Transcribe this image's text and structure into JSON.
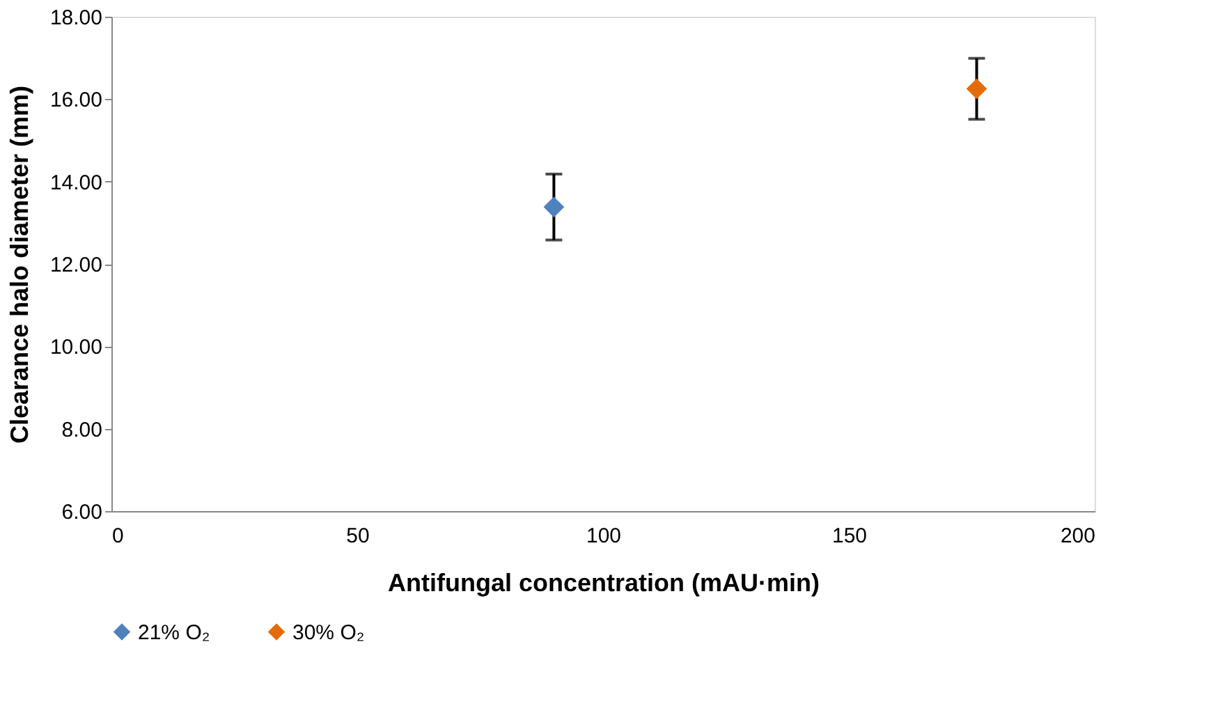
{
  "chart_data": {
    "type": "scatter",
    "xlabel": "Antifungal concentration (mAU·min)",
    "ylabel": "Clearance halo diameter (mm)",
    "xlim": [
      0,
      200
    ],
    "xticks": [
      0,
      50,
      100,
      150,
      200
    ],
    "ylim": [
      6,
      18
    ],
    "yticks": [
      {
        "value": 6,
        "label": "6.00"
      },
      {
        "value": 8,
        "label": "8.00"
      },
      {
        "value": 10,
        "label": "10.00"
      },
      {
        "value": 12,
        "label": "12.00"
      },
      {
        "value": 14,
        "label": "14.00"
      },
      {
        "value": 16,
        "label": "16.00"
      },
      {
        "value": 18,
        "label": "18.00"
      }
    ],
    "grid": false,
    "legend": "bottom",
    "marker": "diamond",
    "series": [
      {
        "name": "21% O₂",
        "color": "#4f81bd",
        "x": [
          90
        ],
        "values": [
          13.38
        ],
        "errors": [
          0.8
        ]
      },
      {
        "name": "30% O₂",
        "color": "#e36c09",
        "x": [
          176
        ],
        "values": [
          16.25
        ],
        "errors": [
          0.74
        ]
      }
    ]
  }
}
